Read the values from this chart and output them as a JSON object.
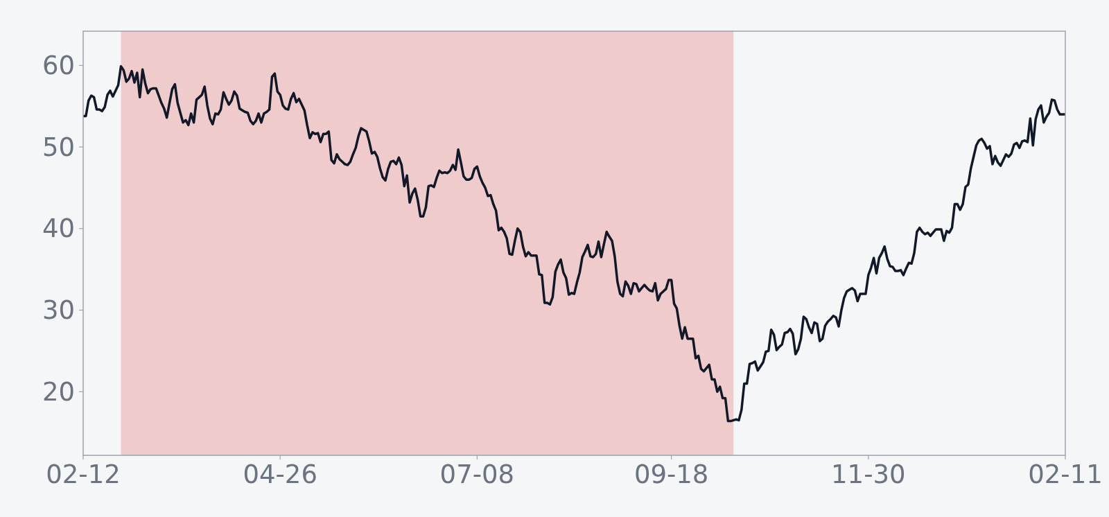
{
  "chart_data": {
    "type": "line",
    "categories": [
      "02-12",
      null,
      null,
      null,
      null,
      null,
      null,
      null,
      null,
      null,
      null,
      null,
      null,
      null,
      null,
      null,
      null,
      null,
      null,
      null,
      null,
      null,
      null,
      null,
      null,
      null,
      null,
      null,
      null,
      null,
      null,
      null,
      null,
      null,
      null,
      null,
      null,
      null,
      null,
      null,
      null,
      null,
      null,
      null,
      null,
      null,
      null,
      null,
      null,
      null,
      null,
      null,
      null,
      null,
      null,
      null,
      null,
      null,
      null,
      null,
      null,
      null,
      null,
      null,
      null,
      null,
      null,
      null,
      null,
      null,
      null,
      null,
      null,
      "04-26",
      null,
      null,
      null,
      null,
      null,
      null,
      null,
      null,
      null,
      null,
      null,
      null,
      null,
      null,
      null,
      null,
      null,
      null,
      null,
      null,
      null,
      null,
      null,
      null,
      null,
      null,
      null,
      null,
      null,
      null,
      null,
      null,
      null,
      null,
      null,
      null,
      null,
      null,
      null,
      null,
      null,
      null,
      null,
      null,
      null,
      null,
      null,
      null,
      null,
      null,
      null,
      null,
      null,
      null,
      null,
      null,
      null,
      null,
      null,
      null,
      null,
      null,
      null,
      null,
      null,
      null,
      null,
      null,
      null,
      null,
      null,
      null,
      "07-08",
      null,
      null,
      null,
      null,
      null,
      null,
      null,
      null,
      null,
      null,
      null,
      null,
      null,
      null,
      null,
      null,
      null,
      null,
      null,
      null,
      null,
      null,
      null,
      null,
      null,
      null,
      null,
      null,
      null,
      null,
      null,
      null,
      null,
      null,
      null,
      null,
      null,
      null,
      null,
      null,
      null,
      null,
      null,
      null,
      null,
      null,
      null,
      null,
      null,
      null,
      null,
      null,
      null,
      null,
      null,
      null,
      null,
      null,
      null,
      null,
      null,
      null,
      null,
      null,
      null,
      null,
      null,
      null,
      null,
      null,
      null,
      "09-18",
      null,
      null,
      null,
      null,
      null,
      null,
      null,
      null,
      null,
      null,
      null,
      null,
      null,
      null,
      null,
      null,
      null,
      null,
      null,
      null,
      null,
      null,
      null,
      null,
      null,
      null,
      null,
      null,
      null,
      null,
      null,
      null,
      null,
      null,
      null,
      null,
      null,
      null,
      null,
      null,
      null,
      null,
      null,
      null,
      null,
      null,
      null,
      null,
      null,
      null,
      null,
      null,
      null,
      null,
      null,
      null,
      null,
      null,
      null,
      null,
      null,
      null,
      null,
      null,
      null,
      null,
      null,
      null,
      null,
      null,
      null,
      null,
      "11-30",
      null,
      null,
      null,
      null,
      null,
      null,
      null,
      null,
      null,
      null,
      null,
      null,
      null,
      null,
      null,
      null,
      null,
      null,
      null,
      null,
      null,
      null,
      null,
      null,
      null,
      null,
      null,
      null,
      null,
      null,
      null,
      null,
      null,
      null,
      null,
      null,
      null,
      null,
      null,
      null,
      null,
      null,
      null,
      null,
      null,
      null,
      null,
      null,
      null,
      null,
      null,
      null,
      null,
      null,
      null,
      null,
      null,
      null,
      null,
      null,
      null,
      null,
      null,
      null,
      null,
      null,
      null,
      null,
      null,
      null,
      null,
      null,
      "02-11"
    ],
    "series": [
      {
        "color": "#111827",
        "values": [
          53.8,
          53.8,
          55.7,
          56.3,
          56.1,
          54.6,
          54.6,
          54.4,
          54.9,
          56.4,
          56.9,
          56.2,
          56.9,
          57.6,
          59.9,
          59.4,
          58.0,
          58.4,
          59.3,
          57.9,
          59.1,
          56.1,
          59.5,
          57.8,
          56.6,
          57.1,
          57.2,
          57.2,
          56.3,
          55.4,
          54.7,
          53.6,
          55.4,
          57.1,
          57.7,
          55.4,
          54.2,
          53.0,
          53.3,
          52.7,
          54.1,
          53.0,
          55.8,
          56.1,
          56.4,
          57.4,
          55.1,
          53.5,
          52.8,
          54.1,
          54.0,
          54.6,
          56.7,
          55.9,
          55.2,
          55.7,
          56.8,
          56.3,
          54.7,
          54.5,
          54.3,
          54.2,
          53.2,
          52.8,
          53.2,
          54.1,
          53.0,
          54.1,
          54.3,
          54.6,
          58.6,
          59.0,
          56.8,
          56.4,
          55.1,
          54.7,
          54.6,
          55.9,
          56.6,
          55.5,
          55.9,
          55.2,
          54.5,
          52.7,
          51.1,
          51.8,
          51.6,
          51.7,
          50.6,
          51.6,
          51.6,
          51.9,
          48.4,
          48.0,
          49.1,
          48.5,
          48.2,
          47.9,
          47.8,
          48.2,
          49.1,
          49.9,
          51.3,
          52.3,
          52.1,
          51.9,
          50.7,
          49.2,
          49.4,
          48.8,
          47.4,
          46.3,
          45.9,
          47.3,
          48.2,
          48.3,
          47.9,
          48.7,
          47.8,
          45.2,
          46.5,
          43.2,
          44.3,
          44.9,
          43.5,
          41.5,
          41.5,
          42.6,
          45.2,
          45.3,
          45.1,
          46.2,
          47.1,
          46.8,
          46.9,
          46.8,
          47.1,
          47.8,
          47.2,
          49.7,
          48.1,
          46.4,
          46.0,
          46.0,
          46.2,
          47.3,
          47.6,
          46.4,
          45.6,
          45.0,
          44.0,
          44.1,
          43.0,
          42.2,
          39.8,
          40.1,
          39.6,
          38.8,
          36.9,
          36.8,
          38.5,
          40.0,
          39.6,
          37.8,
          36.6,
          37.1,
          36.7,
          36.7,
          36.7,
          34.4,
          34.3,
          30.9,
          30.9,
          30.7,
          31.6,
          34.7,
          35.6,
          36.2,
          34.6,
          33.9,
          31.9,
          32.1,
          32.0,
          33.4,
          34.6,
          36.5,
          37.2,
          38.0,
          36.6,
          36.5,
          36.9,
          38.4,
          36.5,
          38.1,
          39.6,
          39.0,
          38.5,
          36.6,
          33.5,
          32.0,
          31.7,
          33.5,
          33.0,
          32.0,
          33.3,
          33.2,
          32.3,
          32.7,
          33.1,
          32.7,
          32.4,
          32.3,
          33.3,
          31.2,
          32.0,
          32.3,
          32.6,
          33.7,
          33.7,
          30.8,
          30.2,
          28.1,
          26.5,
          27.9,
          26.5,
          26.5,
          26.5,
          24.1,
          24.4,
          22.8,
          22.5,
          22.9,
          23.3,
          21.5,
          21.5,
          20.0,
          20.6,
          19.2,
          19.2,
          16.4,
          16.4,
          16.5,
          16.6,
          16.5,
          17.8,
          21.0,
          21.0,
          23.4,
          23.5,
          23.7,
          22.6,
          23.1,
          23.6,
          24.9,
          25.0,
          27.6,
          27.0,
          25.1,
          25.5,
          25.8,
          27.2,
          27.3,
          27.7,
          27.1,
          24.6,
          25.2,
          26.5,
          29.2,
          28.9,
          27.9,
          27.2,
          28.5,
          28.3,
          26.2,
          26.5,
          28.1,
          28.6,
          28.9,
          29.3,
          29.1,
          28.0,
          30.0,
          31.5,
          32.3,
          32.5,
          32.7,
          32.4,
          31.1,
          32.0,
          32.0,
          32.0,
          34.3,
          35.2,
          36.4,
          34.5,
          36.4,
          37.0,
          37.8,
          36.3,
          35.4,
          35.3,
          34.8,
          34.8,
          34.9,
          34.3,
          35.1,
          35.8,
          35.7,
          37.0,
          39.6,
          40.1,
          39.6,
          39.3,
          39.5,
          39.1,
          39.5,
          39.9,
          39.9,
          39.9,
          38.5,
          39.7,
          39.5,
          40.1,
          43.0,
          43.0,
          42.3,
          43.0,
          45.1,
          45.4,
          47.4,
          48.8,
          50.2,
          50.8,
          51.0,
          50.5,
          49.8,
          50.1,
          47.9,
          48.9,
          48.1,
          47.7,
          48.4,
          49.1,
          48.8,
          49.2,
          50.3,
          50.5,
          49.9,
          50.7,
          50.8,
          50.6,
          53.5,
          50.2,
          53.4,
          54.6,
          55.1,
          53.0,
          53.7,
          54.2,
          55.8,
          55.7,
          54.6,
          54.0,
          54.0,
          54.0
        ]
      }
    ],
    "ylim": [
      12.2,
      64.2
    ],
    "yticks": [
      20,
      30,
      40,
      50,
      60
    ]
  }
}
